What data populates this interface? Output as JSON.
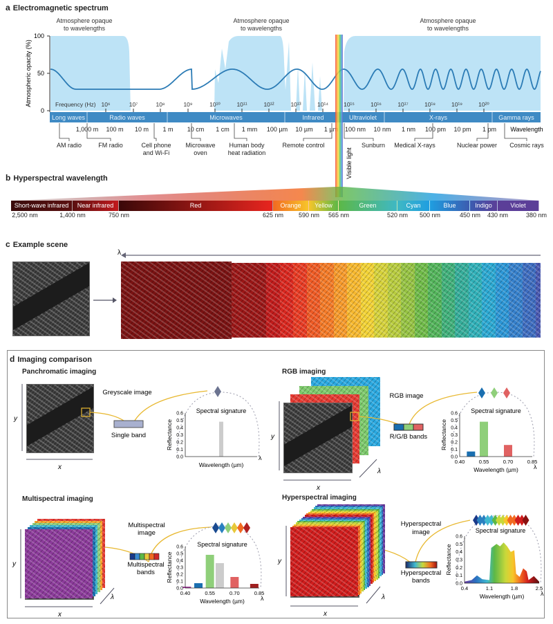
{
  "panel_a": {
    "letter": "a",
    "title": "Electromagnetic spectrum",
    "opaque_label_line1": "Atmosphere opaque",
    "opaque_label_line2": "to wavelengths",
    "ylabel": "Atmospheric opacity (%)",
    "yticks": [
      "100",
      "50",
      "0"
    ],
    "frequency_label": "Frequency (Hz)",
    "frequencies": [
      "10⁶",
      "10⁷",
      "10⁸",
      "10⁹",
      "10¹⁰",
      "10¹¹",
      "10¹²",
      "10¹³",
      "10¹⁴",
      "10¹⁵",
      "10¹⁶",
      "10¹⁷",
      "10¹⁸",
      "10¹⁹",
      "10²⁰"
    ],
    "bands": [
      "Long waves",
      "Radio waves",
      "Microwaves",
      "Infrared",
      "Ultraviolet",
      "X-rays",
      "Gamma rays"
    ],
    "wavelengths": [
      "1,000 m",
      "100 m",
      "10 m",
      "1 m",
      "10 cm",
      "1 cm",
      "1 mm",
      "100 µm",
      "10 µm",
      "1 µm",
      "100 nm",
      "10 nm",
      "1 nm",
      "100 pm",
      "10 pm",
      "1 pm"
    ],
    "wavelength_label": "Wavelength",
    "applications": [
      [
        "AM radio"
      ],
      [
        "FM radio"
      ],
      [
        "Cell phone",
        "and Wi-Fi"
      ],
      [
        "Microwave",
        "oven"
      ],
      [
        "Human body",
        "heat radiation"
      ],
      [
        "Remote control"
      ],
      [
        "Sunburn"
      ],
      [
        "Medical X-rays"
      ],
      [
        "Nuclear power"
      ],
      [
        "Cosmic rays"
      ]
    ],
    "visible_label": "Visible light",
    "colors": {
      "opaque": "#bde3f6",
      "band": "#3f8ac4",
      "wave": "#2b7bb5"
    }
  },
  "panel_b": {
    "letter": "b",
    "title": "Hyperspectral wavelength",
    "segments": [
      {
        "label": "Short-wave infrared",
        "color": "#3a0c0c"
      },
      {
        "label": "Near infrared",
        "color": "#5a1010"
      },
      {
        "label": "Red",
        "color": "#c2181c"
      },
      {
        "label": "Orange",
        "color": "#f26a21"
      },
      {
        "label": "Yellow",
        "color": "#f7c52a"
      },
      {
        "label": "Green",
        "color": "#5cb847"
      },
      {
        "label": "Cyan",
        "color": "#3fb8c4"
      },
      {
        "label": "Blue",
        "color": "#1f9ee0"
      },
      {
        "label": "Indigo",
        "color": "#3c5cb0"
      },
      {
        "label": "Violet",
        "color": "#5b3e98"
      }
    ],
    "wavelengths": [
      "2,500 nm",
      "1,400 nm",
      "750 nm",
      "625 nm",
      "590 nm",
      "565 nm",
      "520 nm",
      "500 nm",
      "450 nm",
      "430 nm",
      "380 nm"
    ]
  },
  "panel_c": {
    "letter": "c",
    "title": "Example scene",
    "lambda": "λ",
    "slice_colors": [
      "#7a1212",
      "#9a1616",
      "#c01b1b",
      "#d9261e",
      "#e83a22",
      "#ef5a24",
      "#f47a26",
      "#f79a2a",
      "#f7b82e",
      "#f2d234",
      "#d6d23a",
      "#b8cc3e",
      "#96c342",
      "#6fbb48",
      "#52b45a",
      "#3fb07a",
      "#34ad9a",
      "#2fb0b8",
      "#2aa8d2",
      "#2b96d6",
      "#3580cc",
      "#3d6cc0",
      "#4858b2",
      "#5648a6",
      "#60419e"
    ]
  },
  "panel_d": {
    "letter": "d",
    "title": "Imaging comparison",
    "axis_x": "x",
    "axis_y": "y",
    "lambda": "λ",
    "spectral_signature": "Spectral signature",
    "reflectance": "Reflectance",
    "wavelength": "Wavelength (µm)",
    "yticks": [
      "0.6",
      "0.5",
      "0.4",
      "0.3",
      "0.2",
      "0.1",
      "0.0"
    ],
    "panchromatic": {
      "title": "Panchromatic imaging",
      "image_label": "Greyscale image",
      "band_label": "Single band"
    },
    "rgb": {
      "title": "RGB imaging",
      "image_label": "RGB image",
      "band_label": "R/G/B bands"
    },
    "multispectral": {
      "title": "Multispectral imaging",
      "image_label_1": "Multispectral",
      "image_label_2": "image",
      "band_label_1": "Multispectral",
      "band_label_2": "bands"
    },
    "hyperspectral": {
      "title": "Hyperspectral imaging",
      "image_label_1": "Hyperspectral",
      "image_label_2": "image",
      "band_label_1": "Hyperspectral",
      "band_label_2": "bands"
    }
  },
  "chart_data": [
    {
      "id": "panchromatic",
      "type": "bar",
      "ylabel": "Reflectance",
      "xlabel": "Wavelength (µm)",
      "ylim": [
        0,
        0.6
      ],
      "xticks": [],
      "bars": [
        {
          "value": 0.48,
          "color": "#cccccc"
        }
      ]
    },
    {
      "id": "rgb",
      "type": "bar",
      "ylabel": "Reflectance",
      "xlabel": "Wavelength (µm)",
      "ylim": [
        0,
        0.6
      ],
      "xlim": [
        0.4,
        0.85
      ],
      "xticks": [
        "0.40",
        "0.55",
        "0.70",
        "0.85"
      ],
      "bars": [
        {
          "x": 0.47,
          "value": 0.07,
          "color": "#1a6fb0"
        },
        {
          "x": 0.55,
          "value": 0.48,
          "color": "#8fcf7a"
        },
        {
          "x": 0.7,
          "value": 0.16,
          "color": "#e06262"
        }
      ]
    },
    {
      "id": "multispectral",
      "type": "bar",
      "ylabel": "Reflectance",
      "xlabel": "Wavelength (µm)",
      "ylim": [
        0,
        0.6
      ],
      "xlim": [
        0.4,
        0.85
      ],
      "xticks": [
        "0.40",
        "0.55",
        "0.70",
        "0.85"
      ],
      "bars": [
        {
          "x": 0.41,
          "value": 0.02,
          "color": "#a03a9a"
        },
        {
          "x": 0.48,
          "value": 0.07,
          "color": "#1a6fb0"
        },
        {
          "x": 0.55,
          "value": 0.48,
          "color": "#8fcf7a"
        },
        {
          "x": 0.61,
          "value": 0.36,
          "color": "#cccccc"
        },
        {
          "x": 0.7,
          "value": 0.16,
          "color": "#e06262"
        },
        {
          "x": 0.82,
          "value": 0.06,
          "color": "#a02020"
        }
      ]
    },
    {
      "id": "hyperspectral",
      "type": "area",
      "ylabel": "Reflectance",
      "xlabel": "Wavelength (µm)",
      "ylim": [
        0,
        0.6
      ],
      "xlim": [
        0.4,
        2.5
      ],
      "xticks": [
        "0.4",
        "1.1",
        "1.8",
        "2.5"
      ],
      "x": [
        0.4,
        0.6,
        0.75,
        0.9,
        1.1,
        1.15,
        1.3,
        1.4,
        1.5,
        1.6,
        1.7,
        1.8,
        1.85,
        1.95,
        2.05,
        2.15,
        2.2,
        2.35,
        2.5
      ],
      "y": [
        0.02,
        0.04,
        0.1,
        0.05,
        0.04,
        0.45,
        0.5,
        0.47,
        0.52,
        0.47,
        0.4,
        0.42,
        0.12,
        0.08,
        0.19,
        0.15,
        0.04,
        0.09,
        0.02
      ]
    }
  ]
}
